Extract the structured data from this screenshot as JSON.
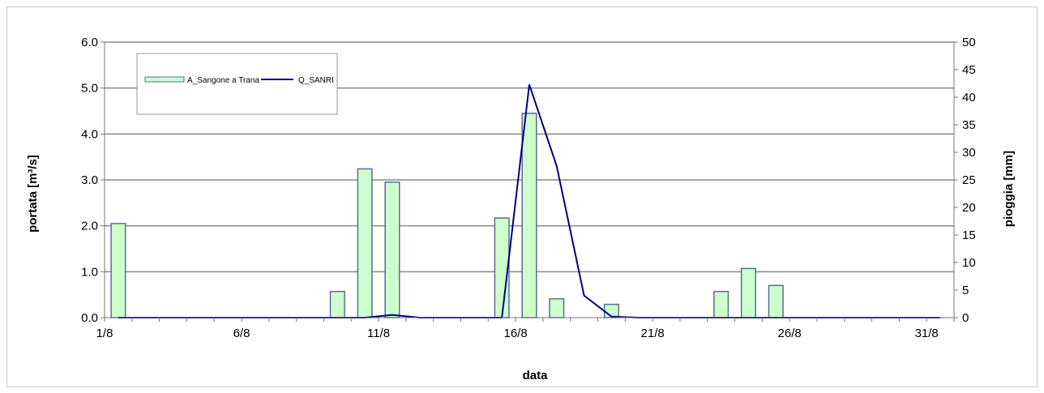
{
  "chart_data": {
    "type": "bar+line",
    "title": "",
    "xlabel": "data",
    "ylabel_left": "portata [m³/s]",
    "ylabel_right": "pioggia [mm]",
    "ylim_left": [
      0,
      6
    ],
    "ylim_right": [
      0,
      50
    ],
    "yticks_left": [
      "0.0",
      "1.0",
      "2.0",
      "3.0",
      "4.0",
      "5.0",
      "6.0"
    ],
    "yticks_right": [
      "0",
      "5",
      "10",
      "15",
      "20",
      "25",
      "30",
      "35",
      "40",
      "45",
      "50"
    ],
    "xticks": [
      "1/8",
      "6/8",
      "11/8",
      "16/8",
      "21/8",
      "26/8",
      "31/8"
    ],
    "grid": true,
    "legend_position": "top-left",
    "day_count": 31,
    "series": [
      {
        "name": "A_Sangone a Trana",
        "kind": "bar",
        "axis": "left",
        "color": "#ccffcc",
        "stroke": "#5a6a9a",
        "days": [
          1,
          9,
          10,
          11,
          15,
          16,
          17,
          19,
          23,
          24,
          25
        ],
        "values": [
          2.05,
          0.57,
          3.24,
          2.95,
          2.17,
          4.45,
          0.41,
          0.29,
          0.57,
          1.07,
          0.7
        ]
      },
      {
        "name": "Q_SANRI",
        "kind": "line",
        "axis": "right",
        "color": "#000080",
        "days": [
          1,
          2,
          3,
          4,
          5,
          6,
          7,
          8,
          9,
          10,
          11,
          12,
          13,
          14,
          15,
          16,
          17,
          18,
          19,
          20,
          21,
          22,
          23,
          24,
          25,
          26,
          27,
          28,
          29,
          30,
          31
        ],
        "values": [
          0,
          0,
          0,
          0,
          0,
          0,
          0,
          0,
          0,
          0,
          0.5,
          0,
          0,
          0,
          0,
          42.3,
          27.5,
          4,
          0.2,
          0,
          0,
          0,
          0,
          0,
          0,
          0,
          0,
          0,
          0,
          0,
          0
        ]
      }
    ]
  }
}
